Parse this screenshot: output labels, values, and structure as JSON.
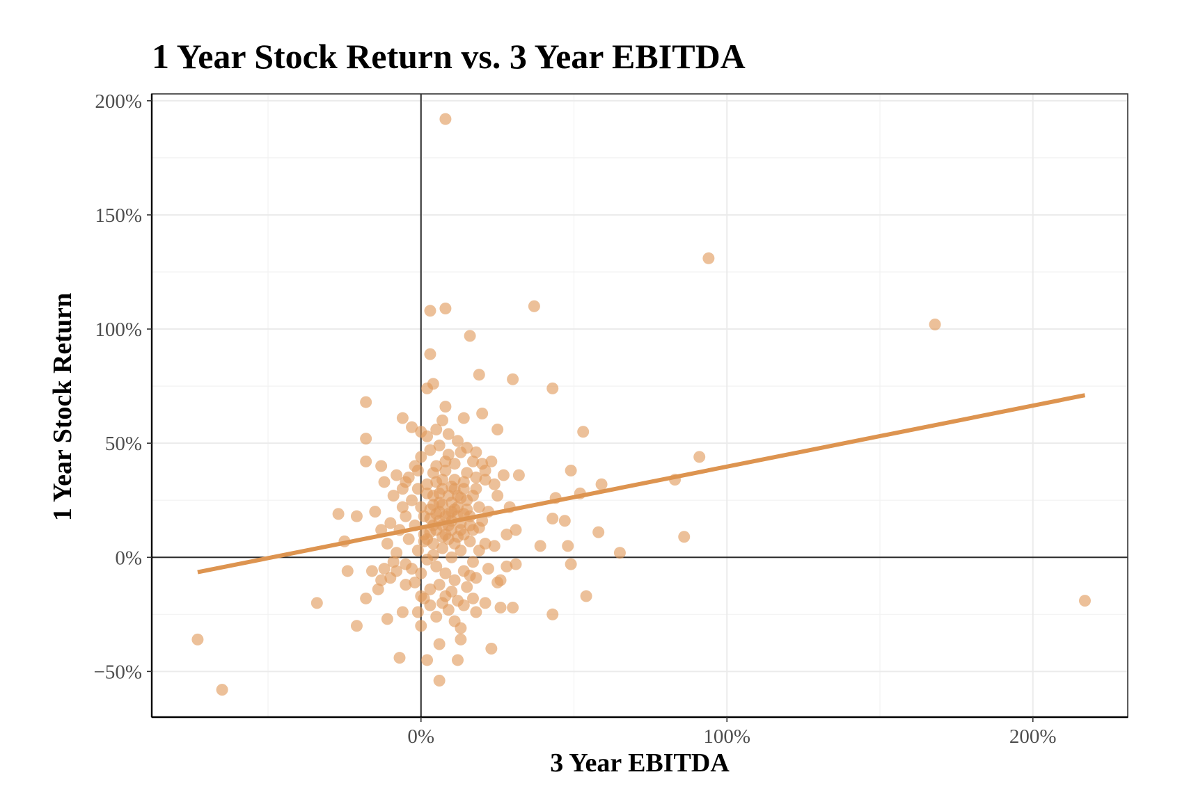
{
  "chart_data": {
    "type": "scatter",
    "title": "1 Year Stock Return vs. 3 Year EBITDA",
    "xlabel": "3 Year EBITDA",
    "ylabel": "1 Year Stock Return",
    "xlim": [
      -0.88,
      2.31
    ],
    "ylim": [
      -0.7,
      2.03
    ],
    "x_ticks": [
      {
        "value": 0,
        "label": "0%"
      },
      {
        "value": 1,
        "label": "100%"
      },
      {
        "value": 2,
        "label": "200%"
      }
    ],
    "y_ticks": [
      {
        "value": -0.5,
        "label": "−50%"
      },
      {
        "value": 0,
        "label": "0%"
      },
      {
        "value": 0.5,
        "label": "50%"
      },
      {
        "value": 1,
        "label": "100%"
      },
      {
        "value": 1.5,
        "label": "150%"
      },
      {
        "value": 2,
        "label": "200%"
      }
    ],
    "minor_x": [
      -0.5,
      0.5,
      1.5
    ],
    "minor_y": [
      -0.25,
      0.25,
      0.75,
      1.25,
      1.75
    ],
    "grid": true,
    "reference_lines": {
      "x": 0,
      "y": 0
    },
    "point_color": "#E09A5A",
    "line_color": "#DD9450",
    "trend_line": {
      "x": [
        -0.73,
        2.17
      ],
      "y": [
        -0.065,
        0.71
      ]
    },
    "points": [
      [
        0.08,
        1.92
      ],
      [
        0.94,
        1.31
      ],
      [
        1.68,
        1.02
      ],
      [
        2.17,
        -0.19
      ],
      [
        -0.73,
        -0.36
      ],
      [
        -0.65,
        -0.58
      ],
      [
        0.03,
        1.08
      ],
      [
        0.08,
        1.09
      ],
      [
        0.37,
        1.1
      ],
      [
        0.16,
        0.97
      ],
      [
        0.03,
        0.89
      ],
      [
        0.19,
        0.8
      ],
      [
        0.3,
        0.78
      ],
      [
        0.43,
        0.74
      ],
      [
        0.04,
        0.76
      ],
      [
        0.02,
        0.74
      ],
      [
        0.08,
        0.66
      ],
      [
        -0.18,
        0.68
      ],
      [
        -0.06,
        0.61
      ],
      [
        0.14,
        0.61
      ],
      [
        0.2,
        0.63
      ],
      [
        0.53,
        0.55
      ],
      [
        0.25,
        0.56
      ],
      [
        -0.03,
        0.57
      ],
      [
        0.07,
        0.6
      ],
      [
        0.91,
        0.44
      ],
      [
        0.83,
        0.34
      ],
      [
        0.59,
        0.32
      ],
      [
        0.49,
        0.38
      ],
      [
        0.32,
        0.36
      ],
      [
        0.52,
        0.28
      ],
      [
        0.86,
        0.09
      ],
      [
        0.58,
        0.11
      ],
      [
        0.65,
        0.02
      ],
      [
        0.48,
        0.05
      ],
      [
        0.54,
        -0.17
      ],
      [
        0.43,
        -0.25
      ],
      [
        0.49,
        -0.03
      ],
      [
        0.39,
        0.05
      ],
      [
        0.43,
        0.17
      ],
      [
        0.47,
        0.16
      ],
      [
        0.44,
        0.26
      ],
      [
        0.31,
        0.12
      ],
      [
        0.31,
        -0.03
      ],
      [
        0.28,
        -0.04
      ],
      [
        0.3,
        -0.22
      ],
      [
        0.26,
        -0.22
      ],
      [
        0.23,
        -0.4
      ],
      [
        0.26,
        -0.1
      ],
      [
        0.06,
        -0.54
      ],
      [
        0.12,
        -0.45
      ],
      [
        0.02,
        -0.45
      ],
      [
        -0.07,
        -0.44
      ],
      [
        0.06,
        -0.38
      ],
      [
        0.13,
        -0.36
      ],
      [
        -0.21,
        -0.3
      ],
      [
        -0.34,
        -0.2
      ],
      [
        -0.18,
        -0.18
      ],
      [
        -0.11,
        -0.27
      ],
      [
        -0.06,
        -0.24
      ],
      [
        -0.27,
        0.19
      ],
      [
        -0.21,
        0.18
      ],
      [
        -0.24,
        -0.06
      ],
      [
        -0.25,
        0.07
      ],
      [
        -0.18,
        0.42
      ],
      [
        -0.18,
        0.52
      ],
      [
        -0.13,
        0.4
      ],
      [
        -0.12,
        0.33
      ],
      [
        -0.09,
        0.27
      ],
      [
        -0.13,
        0.12
      ],
      [
        -0.15,
        0.2
      ],
      [
        -0.12,
        -0.05
      ],
      [
        -0.14,
        -0.14
      ],
      [
        -0.1,
        -0.09
      ],
      [
        -0.08,
        0.02
      ],
      [
        -0.05,
        -0.12
      ],
      [
        0.0,
        -0.3
      ],
      [
        0.03,
        -0.21
      ],
      [
        0.08,
        -0.17
      ],
      [
        0.11,
        -0.28
      ],
      [
        0.14,
        -0.21
      ],
      [
        0.18,
        -0.24
      ],
      [
        0.16,
        -0.08
      ],
      [
        0.22,
        -0.05
      ],
      [
        0.24,
        0.05
      ],
      [
        0.2,
        0.16
      ],
      [
        0.22,
        0.2
      ],
      [
        0.25,
        0.27
      ],
      [
        0.27,
        0.36
      ],
      [
        0.23,
        0.42
      ],
      [
        0.18,
        0.46
      ],
      [
        0.15,
        0.48
      ],
      [
        0.12,
        0.51
      ],
      [
        0.09,
        0.45
      ],
      [
        0.06,
        0.49
      ],
      [
        0.03,
        0.47
      ],
      [
        0.0,
        0.44
      ],
      [
        -0.02,
        0.4
      ],
      [
        -0.04,
        0.35
      ],
      [
        -0.06,
        0.3
      ],
      [
        -0.03,
        0.25
      ],
      [
        0.0,
        0.22
      ],
      [
        0.02,
        0.28
      ],
      [
        0.05,
        0.33
      ],
      [
        0.08,
        0.38
      ],
      [
        0.11,
        0.34
      ],
      [
        0.14,
        0.3
      ],
      [
        0.17,
        0.27
      ],
      [
        0.19,
        0.22
      ],
      [
        0.16,
        0.18
      ],
      [
        0.13,
        0.15
      ],
      [
        0.1,
        0.12
      ],
      [
        0.07,
        0.09
      ],
      [
        0.04,
        0.06
      ],
      [
        0.01,
        0.1
      ],
      [
        -0.02,
        0.14
      ],
      [
        -0.05,
        0.18
      ],
      [
        -0.07,
        0.12
      ],
      [
        -0.04,
        0.08
      ],
      [
        -0.01,
        0.03
      ],
      [
        0.02,
        -0.01
      ],
      [
        0.05,
        -0.04
      ],
      [
        0.08,
        -0.07
      ],
      [
        0.11,
        -0.1
      ],
      [
        0.14,
        -0.06
      ],
      [
        0.17,
        -0.02
      ],
      [
        0.19,
        0.03
      ],
      [
        0.16,
        0.07
      ],
      [
        0.13,
        0.03
      ],
      [
        0.1,
        0.0
      ],
      [
        0.07,
        0.04
      ],
      [
        0.04,
        0.14
      ],
      [
        0.01,
        0.18
      ],
      [
        0.03,
        0.21
      ],
      [
        0.06,
        0.24
      ],
      [
        0.09,
        0.27
      ],
      [
        0.12,
        0.22
      ],
      [
        0.15,
        0.25
      ],
      [
        0.18,
        0.3
      ],
      [
        0.21,
        0.34
      ],
      [
        0.04,
        0.27
      ],
      [
        0.07,
        0.3
      ],
      [
        0.1,
        0.2
      ],
      [
        0.13,
        0.26
      ],
      [
        0.06,
        0.16
      ],
      [
        0.09,
        0.14
      ],
      [
        0.02,
        0.32
      ],
      [
        -0.01,
        0.3
      ],
      [
        0.05,
        0.4
      ],
      [
        0.11,
        0.41
      ],
      [
        0.08,
        0.42
      ],
      [
        0.15,
        0.37
      ],
      [
        0.2,
        0.41
      ],
      [
        0.24,
        0.32
      ],
      [
        0.29,
        0.22
      ],
      [
        0.28,
        0.1
      ],
      [
        0.25,
        -0.11
      ],
      [
        0.21,
        -0.2
      ],
      [
        0.17,
        -0.18
      ],
      [
        0.13,
        -0.31
      ],
      [
        0.09,
        -0.23
      ],
      [
        0.05,
        -0.26
      ],
      [
        0.01,
        -0.18
      ],
      [
        -0.02,
        -0.11
      ],
      [
        -0.05,
        -0.03
      ],
      [
        -0.08,
        -0.06
      ],
      [
        -0.11,
        0.06
      ],
      [
        -0.1,
        0.15
      ],
      [
        -0.06,
        0.22
      ],
      [
        -0.08,
        0.36
      ],
      [
        -0.05,
        0.33
      ],
      [
        -0.01,
        0.38
      ],
      [
        0.02,
        0.53
      ],
      [
        0.0,
        0.55
      ],
      [
        0.05,
        0.56
      ],
      [
        0.09,
        0.54
      ],
      [
        0.13,
        0.46
      ],
      [
        0.17,
        0.42
      ],
      [
        0.21,
        0.38
      ],
      [
        0.18,
        0.35
      ],
      [
        0.14,
        0.33
      ],
      [
        0.11,
        0.3
      ],
      [
        0.07,
        0.34
      ],
      [
        0.04,
        0.37
      ],
      [
        0.12,
        0.18
      ],
      [
        0.1,
        0.16
      ],
      [
        0.06,
        0.2
      ],
      [
        0.03,
        0.17
      ],
      [
        0.08,
        0.1
      ],
      [
        0.11,
        0.06
      ],
      [
        0.14,
        0.1
      ],
      [
        0.04,
        0.01
      ],
      [
        0.0,
        -0.07
      ],
      [
        -0.03,
        -0.05
      ],
      [
        0.01,
        0.07
      ],
      [
        -0.16,
        -0.06
      ],
      [
        -0.13,
        -0.1
      ],
      [
        -0.09,
        -0.02
      ],
      [
        0.06,
        -0.12
      ],
      [
        0.1,
        -0.15
      ],
      [
        0.12,
        -0.19
      ],
      [
        0.03,
        -0.14
      ],
      [
        0.0,
        -0.17
      ],
      [
        -0.01,
        -0.24
      ],
      [
        0.07,
        -0.2
      ],
      [
        0.15,
        -0.13
      ],
      [
        0.18,
        -0.09
      ],
      [
        0.21,
        0.06
      ],
      [
        0.19,
        0.13
      ],
      [
        0.16,
        0.14
      ],
      [
        0.12,
        0.09
      ],
      [
        0.09,
        0.19
      ],
      [
        0.07,
        0.23
      ],
      [
        0.05,
        0.12
      ],
      [
        0.02,
        0.08
      ],
      [
        0.1,
        0.24
      ],
      [
        0.13,
        0.12
      ],
      [
        0.06,
        0.28
      ],
      [
        0.04,
        0.23
      ],
      [
        0.08,
        0.18
      ],
      [
        0.11,
        0.21
      ],
      [
        0.14,
        0.19
      ],
      [
        0.09,
        0.08
      ],
      [
        0.05,
        0.19
      ],
      [
        0.03,
        0.11
      ],
      [
        0.07,
        0.14
      ],
      [
        0.12,
        0.27
      ],
      [
        0.1,
        0.31
      ],
      [
        0.15,
        0.21
      ],
      [
        0.17,
        0.12
      ]
    ]
  }
}
